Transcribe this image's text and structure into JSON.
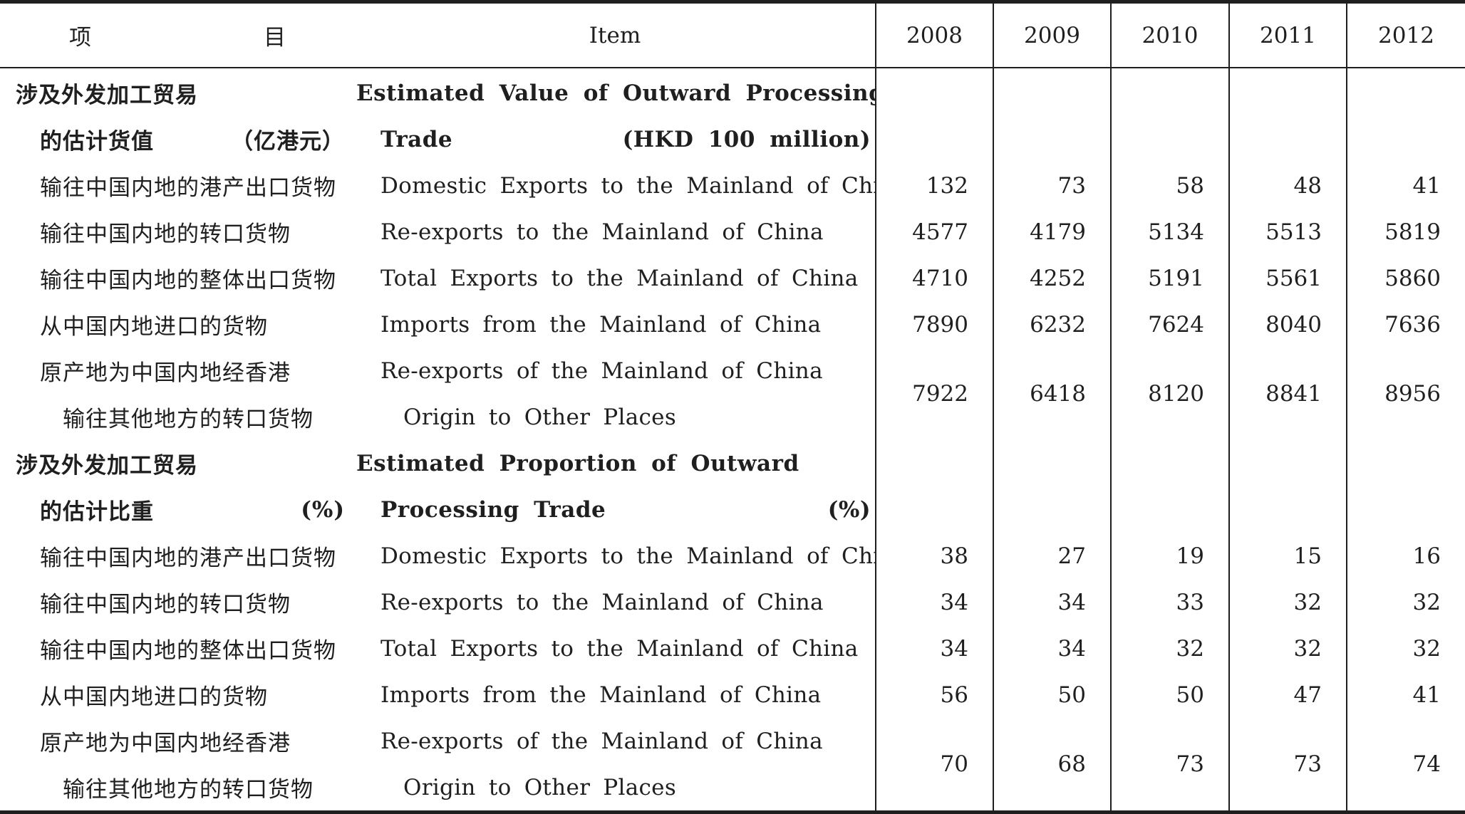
{
  "header": {
    "col_zh": "项　　目",
    "col_en": "Item",
    "years": [
      "2008",
      "2009",
      "2010",
      "2011",
      "2012"
    ]
  },
  "sections": [
    {
      "title_zh_line1": "涉及外发加工贸易",
      "title_zh_line2": "的估计货值",
      "unit_zh": "（亿港元）",
      "title_en_line1": "Estimated Value of Outward Processing",
      "title_en_line2": "Trade",
      "unit_en": "(HKD 100 million)",
      "rows": [
        {
          "zh": "输往中国内地的港产出口货物",
          "en": "Domestic Exports to the Mainland of China",
          "values": [
            "132",
            "73",
            "58",
            "48",
            "41"
          ]
        },
        {
          "zh": "输往中国内地的转口货物",
          "en": "Re-exports to the Mainland of China",
          "values": [
            "4577",
            "4179",
            "5134",
            "5513",
            "5819"
          ]
        },
        {
          "zh": "输往中国内地的整体出口货物",
          "en": "Total Exports to the Mainland of China",
          "values": [
            "4710",
            "4252",
            "5191",
            "5561",
            "5860"
          ]
        },
        {
          "zh": "从中国内地进口的货物",
          "en": "Imports from the Mainland of China",
          "values": [
            "7890",
            "6232",
            "7624",
            "8040",
            "7636"
          ]
        }
      ],
      "last_row": {
        "zh_line1": "原产地为中国内地经香港",
        "zh_line2": "输往其他地方的转口货物",
        "en_line1": "Re-exports of the Mainland of China",
        "en_line2": "Origin to Other Places",
        "values": [
          "7922",
          "6418",
          "8120",
          "8841",
          "8956"
        ]
      }
    },
    {
      "title_zh_line1": "涉及外发加工贸易",
      "title_zh_line2": "的估计比重",
      "unit_zh": "(%)",
      "title_en_line1": "Estimated Proportion of Outward",
      "title_en_line2": "Processing Trade",
      "unit_en": "(%)",
      "rows": [
        {
          "zh": "输往中国内地的港产出口货物",
          "en": "Domestic Exports to the Mainland of China",
          "values": [
            "38",
            "27",
            "19",
            "15",
            "16"
          ]
        },
        {
          "zh": "输往中国内地的转口货物",
          "en": "Re-exports to the Mainland of China",
          "values": [
            "34",
            "34",
            "33",
            "32",
            "32"
          ]
        },
        {
          "zh": "输往中国内地的整体出口货物",
          "en": "Total Exports to the Mainland of China",
          "values": [
            "34",
            "34",
            "32",
            "32",
            "32"
          ]
        },
        {
          "zh": "从中国内地进口的货物",
          "en": "Imports from the Mainland of China",
          "values": [
            "56",
            "50",
            "50",
            "47",
            "41"
          ]
        }
      ],
      "last_row": {
        "zh_line1": "原产地为中国内地经香港",
        "zh_line2": "输往其他地方的转口货物",
        "en_line1": "Re-exports of the Mainland of China",
        "en_line2": "Origin to Other Places",
        "values": [
          "70",
          "68",
          "73",
          "73",
          "74"
        ]
      }
    }
  ]
}
